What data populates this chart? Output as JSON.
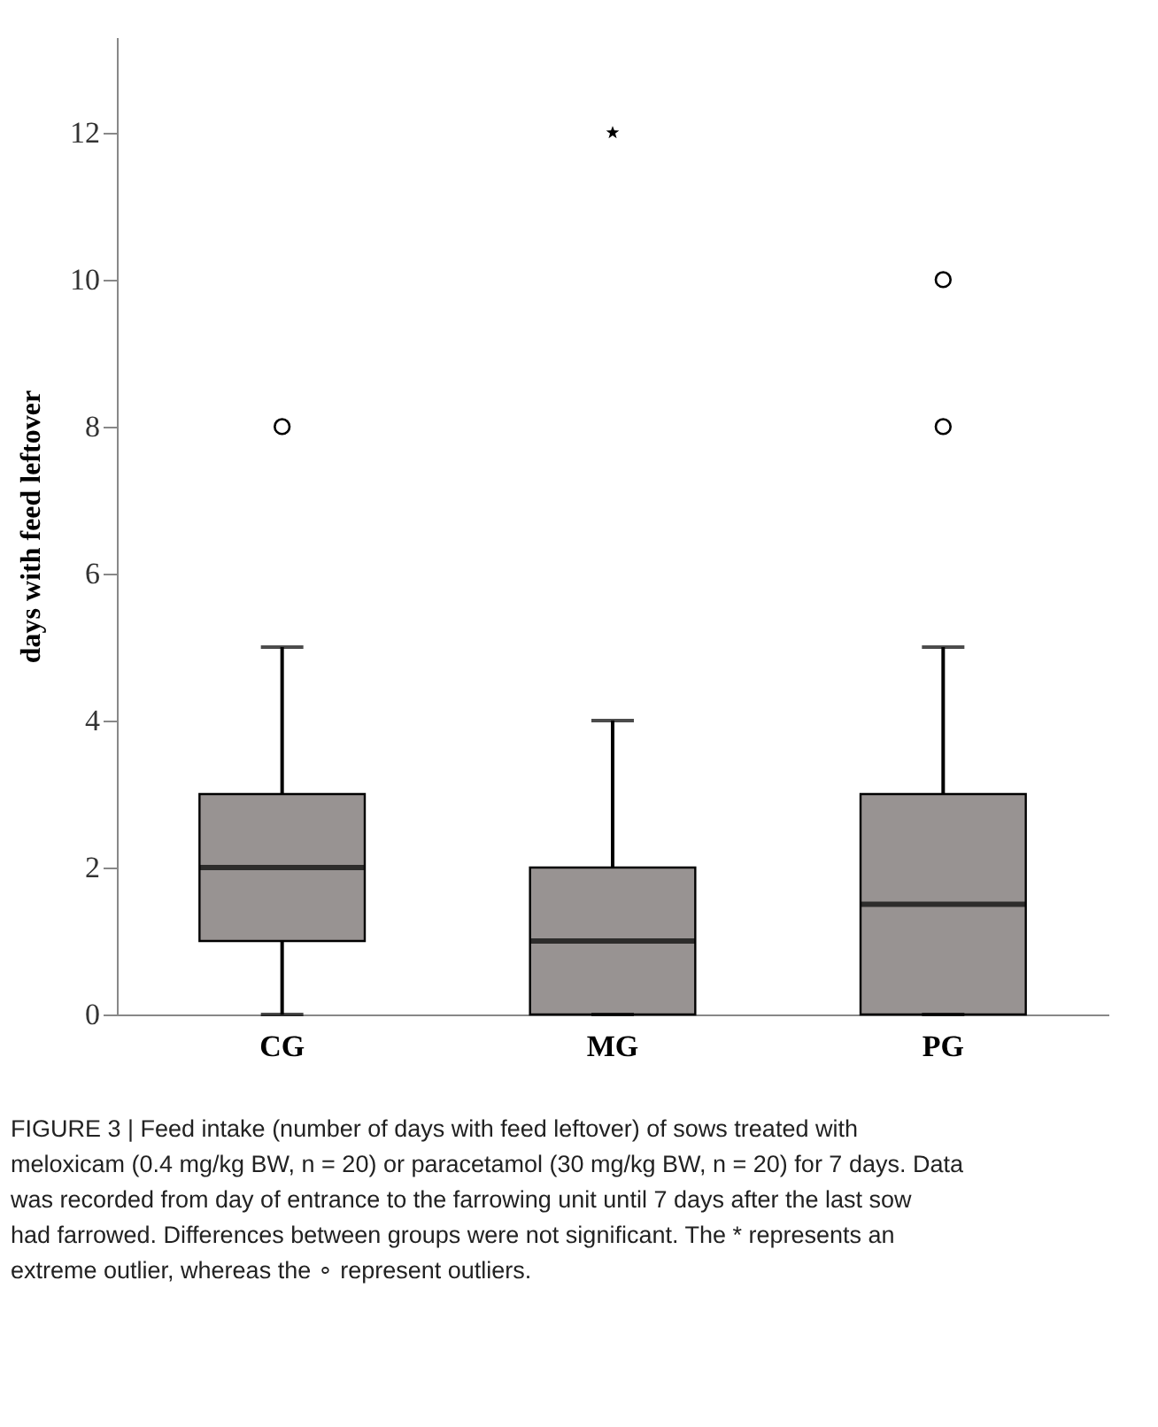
{
  "chart_data": {
    "type": "box",
    "categories": [
      "CG",
      "MG",
      "PG"
    ],
    "ylabel": "days with feed leftover",
    "ylim": [
      0,
      13.3
    ],
    "yticks": [
      0,
      2,
      4,
      6,
      8,
      10,
      12
    ],
    "grid": false,
    "series": [
      {
        "color": "#989392",
        "boxes": [
          {
            "low": 0,
            "q1": 1,
            "median": 2,
            "q3": 3,
            "high": 5,
            "outliers": [
              8
            ]
          },
          {
            "low": 0,
            "q1": 0,
            "median": 1,
            "q3": 2,
            "high": 4
          },
          {
            "low": 0,
            "q1": 0,
            "median": 1.5,
            "q3": 3,
            "high": 5,
            "outliers": [
              8,
              10
            ]
          }
        ]
      },
      {
        "type": "scatter",
        "marker": "star",
        "color": "#000000",
        "x": [
          "MG"
        ],
        "values": [
          12
        ]
      }
    ],
    "annotations": [
      "FIGURE 3 | Feed intake (number of days with feed leftover) of sows treated with meloxicam (0.4 mg/kg BW, n = 20) or paracetamol (30 mg/kg BW, n = 20) for 7 days. Data was recorded from day of entrance to the farrowing unit until 7 days after the last sow had farrowed. Differences between groups were not significant. The * represents an extreme outlier, whereas the ∘ represent outliers."
    ]
  }
}
